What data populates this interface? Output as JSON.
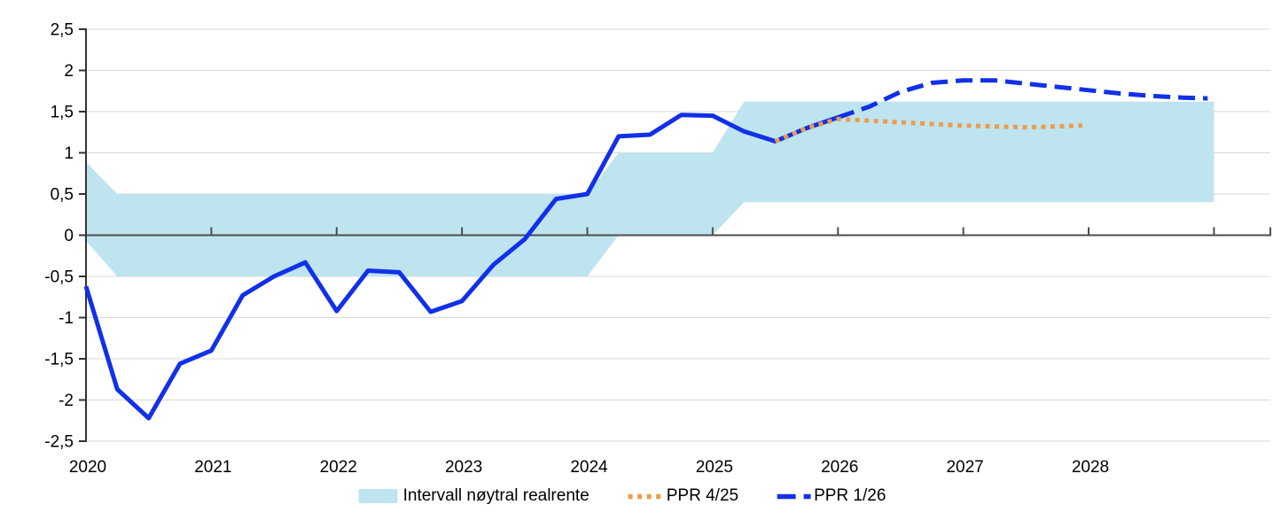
{
  "chart_data": {
    "type": "line",
    "title": "",
    "x_range": [
      2020,
      2029.45
    ],
    "y_range": [
      -2.5,
      2.5
    ],
    "grid": true,
    "decimal_separator": ",",
    "y_ticks": [
      {
        "v": 2.5,
        "label": "2,5"
      },
      {
        "v": 2,
        "label": "2"
      },
      {
        "v": 1.5,
        "label": "1,5"
      },
      {
        "v": 1,
        "label": "1"
      },
      {
        "v": 0.5,
        "label": "0,5"
      },
      {
        "v": 0,
        "label": "0"
      },
      {
        "v": -0.5,
        "label": "-0,5"
      },
      {
        "v": -1,
        "label": "-1"
      },
      {
        "v": -1.5,
        "label": "-1,5"
      },
      {
        "v": -2,
        "label": "-2"
      },
      {
        "v": -2.5,
        "label": "-2,5"
      }
    ],
    "x_ticks": [
      {
        "v": 2020,
        "label": "2020"
      },
      {
        "v": 2021,
        "label": "2021"
      },
      {
        "v": 2022,
        "label": "2022"
      },
      {
        "v": 2023,
        "label": "2023"
      },
      {
        "v": 2024,
        "label": "2024"
      },
      {
        "v": 2025,
        "label": "2025"
      },
      {
        "v": 2026,
        "label": "2026"
      },
      {
        "v": 2027,
        "label": "2027"
      },
      {
        "v": 2028,
        "label": "2028"
      },
      {
        "v": 2029,
        "label": ""
      },
      {
        "v": 2029.45,
        "label": ""
      }
    ],
    "band": {
      "name": "Intervall nøytral realrente",
      "color": "#BEE4F0",
      "upper": [
        [
          2020,
          0.89
        ],
        [
          2020.25,
          0.5
        ],
        [
          2024,
          0.5
        ],
        [
          2024.25,
          1
        ],
        [
          2025,
          1
        ],
        [
          2025.25,
          1.62
        ],
        [
          2029,
          1.62
        ]
      ],
      "lower": [
        [
          2020,
          -0.07
        ],
        [
          2020.25,
          -0.5
        ],
        [
          2024,
          -0.5
        ],
        [
          2024.25,
          0
        ],
        [
          2025,
          0
        ],
        [
          2025.25,
          0.4
        ],
        [
          2029,
          0.4
        ]
      ]
    },
    "series": [
      {
        "name": "Realrente (historikk)",
        "in_legend": false,
        "color": "#1230E8",
        "style": "solid",
        "points": [
          [
            2020,
            -0.62
          ],
          [
            2020.25,
            -1.87
          ],
          [
            2020.5,
            -2.22
          ],
          [
            2020.75,
            -1.56
          ],
          [
            2021,
            -1.4
          ],
          [
            2021.25,
            -0.73
          ],
          [
            2021.5,
            -0.5
          ],
          [
            2021.75,
            -0.33
          ],
          [
            2022,
            -0.92
          ],
          [
            2022.25,
            -0.43
          ],
          [
            2022.5,
            -0.45
          ],
          [
            2022.75,
            -0.93
          ],
          [
            2023,
            -0.8
          ],
          [
            2023.25,
            -0.36
          ],
          [
            2023.5,
            -0.05
          ],
          [
            2023.75,
            0.44
          ],
          [
            2024,
            0.5
          ],
          [
            2024.25,
            1.2
          ],
          [
            2024.5,
            1.22
          ],
          [
            2024.75,
            1.46
          ],
          [
            2025,
            1.45
          ],
          [
            2025.25,
            1.26
          ],
          [
            2025.5,
            1.14
          ],
          [
            2025.75,
            1.3
          ],
          [
            2026,
            1.43
          ]
        ]
      },
      {
        "name": "PPR 1/26",
        "in_legend": true,
        "color": "#1230E8",
        "style": "dashed",
        "points": [
          [
            2026,
            1.43
          ],
          [
            2026.25,
            1.56
          ],
          [
            2026.5,
            1.74
          ],
          [
            2026.75,
            1.85
          ],
          [
            2027,
            1.88
          ],
          [
            2027.25,
            1.88
          ],
          [
            2027.5,
            1.84
          ],
          [
            2027.75,
            1.8
          ],
          [
            2028,
            1.76
          ],
          [
            2028.25,
            1.72
          ],
          [
            2028.5,
            1.69
          ],
          [
            2028.75,
            1.67
          ],
          [
            2028.95,
            1.66
          ]
        ]
      },
      {
        "name": "PPR 4/25",
        "in_legend": true,
        "color": "#EE9B4D",
        "style": "dotted",
        "points": [
          [
            2025.5,
            1.14
          ],
          [
            2025.75,
            1.3
          ],
          [
            2026,
            1.41
          ],
          [
            2026.25,
            1.39
          ],
          [
            2026.5,
            1.37
          ],
          [
            2026.75,
            1.35
          ],
          [
            2027,
            1.33
          ],
          [
            2027.25,
            1.32
          ],
          [
            2027.5,
            1.31
          ],
          [
            2027.75,
            1.32
          ],
          [
            2027.95,
            1.33
          ]
        ]
      }
    ],
    "axis_colors": {
      "gridline": "#D9D9D9",
      "zero_line": "#4D4D4D",
      "y_axis": "#333333",
      "tick": "#4D4D4D",
      "label": "#000000"
    }
  },
  "legend": {
    "items": [
      {
        "label": "Intervall nøytral realrente",
        "swatch": "band",
        "color": "#BEE4F0"
      },
      {
        "label": "PPR 4/25",
        "swatch": "dotted",
        "color": "#EE9B4D"
      },
      {
        "label": "PPR 1/26",
        "swatch": "dashed",
        "color": "#1230E8"
      }
    ]
  }
}
